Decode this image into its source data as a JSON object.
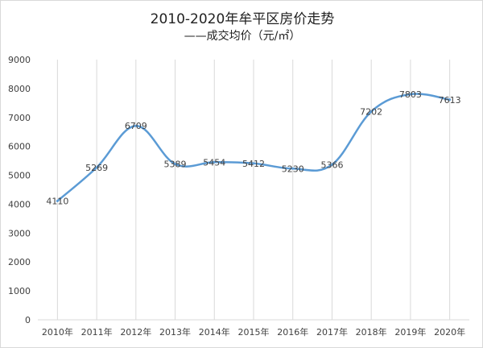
{
  "chart_data": {
    "type": "line",
    "title": "2010-2020年牟平区房价走势",
    "subtitle": "——成交均价（元/㎡）",
    "categories": [
      "2010年",
      "2011年",
      "2012年",
      "2013年",
      "2014年",
      "2015年",
      "2016年",
      "2017年",
      "2018年",
      "2019年",
      "2020年"
    ],
    "series": [
      {
        "values": [
          4110,
          5269,
          6709,
          5389,
          5454,
          5412,
          5230,
          5366,
          7202,
          7803,
          7613
        ]
      }
    ],
    "ylim": [
      0,
      9000
    ],
    "yticks": [
      0,
      1000,
      2000,
      3000,
      4000,
      5000,
      6000,
      7000,
      8000,
      9000
    ],
    "grid": "vertical",
    "line_color": "#5b9bd5",
    "grid_color": "#d9d9d9",
    "text_color": "#404040"
  }
}
